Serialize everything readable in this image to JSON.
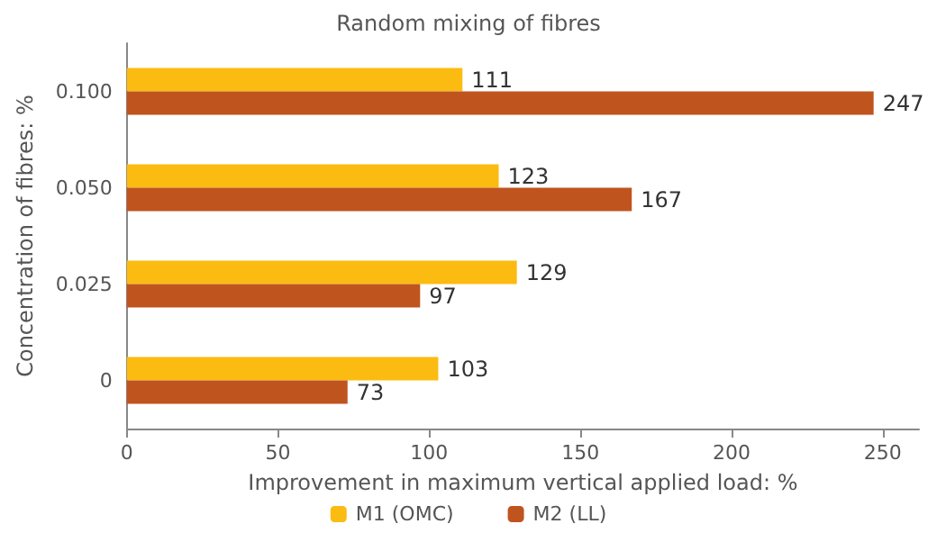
{
  "chart_data": {
    "type": "bar",
    "orientation": "horizontal",
    "title": "Random mixing of fibres",
    "xlabel": "Improvement in maximum vertical applied load: %",
    "ylabel": "Concentration of fibres: %",
    "categories": [
      "0.100",
      "0.050",
      "0.025",
      "0"
    ],
    "series": [
      {
        "name": "M1 (OMC)",
        "color": "#fbbb10",
        "values": [
          111,
          123,
          129,
          103
        ]
      },
      {
        "name": "M2 (LL)",
        "color": "#c0541f",
        "values": [
          247,
          167,
          97,
          73
        ]
      }
    ],
    "xlim": [
      0,
      262
    ],
    "xticks": [
      0,
      50,
      100,
      150,
      200,
      250
    ],
    "grid": false,
    "legend": "bottom",
    "data_labels": true
  }
}
